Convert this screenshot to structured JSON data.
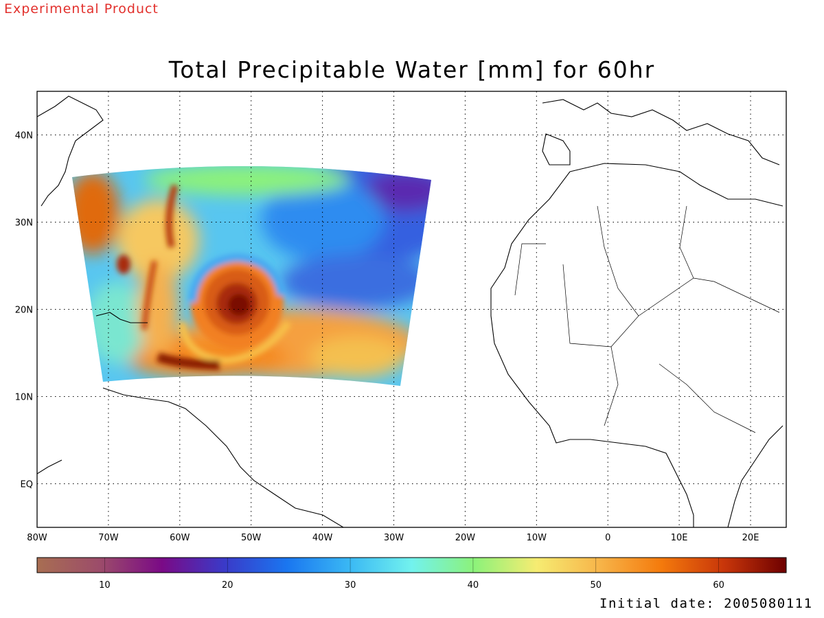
{
  "header": {
    "tag": "Experimental Product"
  },
  "map": {
    "title": "Total Precipitable Water [mm] for 60hr",
    "lon_range": [
      -80,
      25
    ],
    "lat_range": [
      -5,
      45
    ],
    "lon_ticks": [
      {
        "value": -80,
        "label": "80W"
      },
      {
        "value": -70,
        "label": "70W"
      },
      {
        "value": -60,
        "label": "60W"
      },
      {
        "value": -50,
        "label": "50W"
      },
      {
        "value": -40,
        "label": "40W"
      },
      {
        "value": -30,
        "label": "30W"
      },
      {
        "value": -20,
        "label": "20W"
      },
      {
        "value": -10,
        "label": "10W"
      },
      {
        "value": 0,
        "label": "0"
      },
      {
        "value": 10,
        "label": "10E"
      },
      {
        "value": 20,
        "label": "20E"
      }
    ],
    "lat_ticks": [
      {
        "value": 40,
        "label": "40N"
      },
      {
        "value": 30,
        "label": "30N"
      },
      {
        "value": 20,
        "label": "20N"
      },
      {
        "value": 10,
        "label": "10N"
      },
      {
        "value": 0,
        "label": "EQ"
      }
    ],
    "grid": "dotted",
    "storm_center": {
      "lon": -52,
      "lat": 21
    }
  },
  "colorbar": {
    "range": [
      4.5,
      65.5
    ],
    "ticks": [
      10,
      20,
      30,
      40,
      50,
      60
    ],
    "colors": [
      "#a86e52",
      "#9c4c6a",
      "#7a0a86",
      "#3a3ac8",
      "#1a76f0",
      "#3ab8f4",
      "#72f2ee",
      "#8cf27a",
      "#f6ec72",
      "#f7b54a",
      "#f47a0c",
      "#c8360a",
      "#6e0000"
    ]
  },
  "footer": {
    "initial_date": "Initial date: 2005080111"
  }
}
